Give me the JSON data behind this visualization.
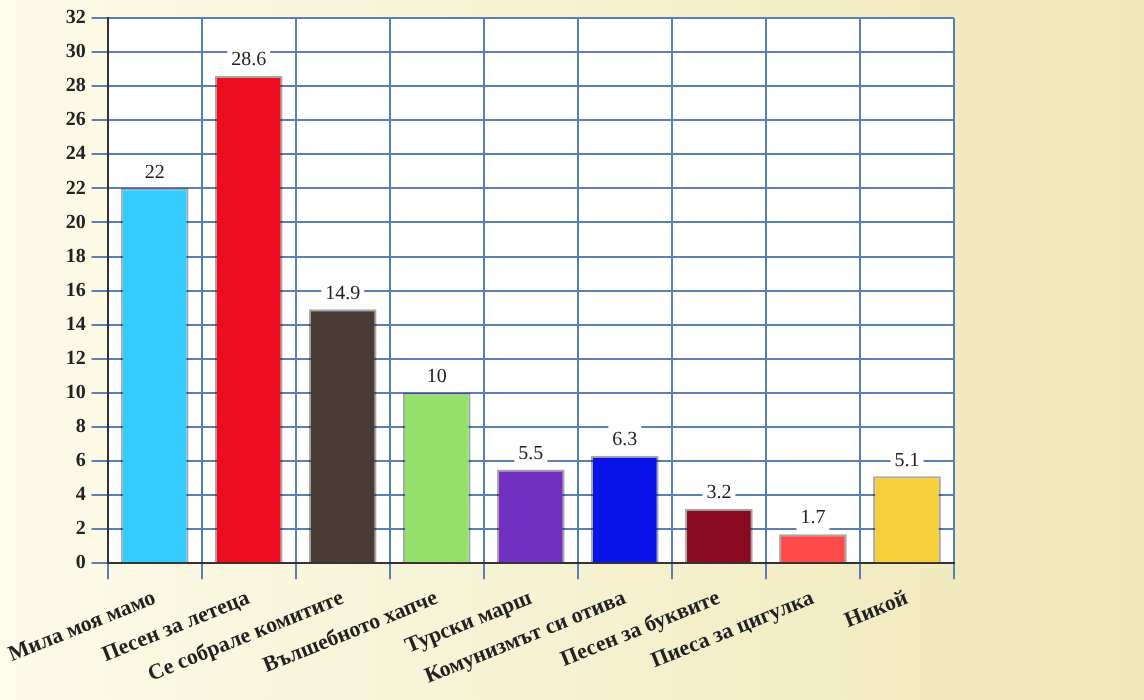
{
  "chart_data": {
    "type": "bar",
    "categories": [
      "Мила моя мамо",
      "Песен за летеца",
      "Се собрале комитите",
      "Вълшебното хапче",
      "Турски марш",
      "Комунизмът си отива",
      "Песен за буквите",
      "Пиеса за цигулка",
      "Никой"
    ],
    "values": [
      22,
      28.6,
      14.9,
      10,
      5.5,
      6.3,
      3.2,
      1.7,
      5.1
    ],
    "colors": [
      "#33ccff",
      "#ee0c1f",
      "#4a3b36",
      "#93e06a",
      "#7030c0",
      "#0a14e8",
      "#8a0a22",
      "#ff4a4a",
      "#f5d03a"
    ],
    "ylim": [
      0,
      32
    ],
    "yticks": [
      0,
      2,
      4,
      6,
      8,
      10,
      12,
      14,
      16,
      18,
      20,
      22,
      24,
      26,
      28,
      30,
      32
    ],
    "grid": true,
    "data_labels": true
  }
}
